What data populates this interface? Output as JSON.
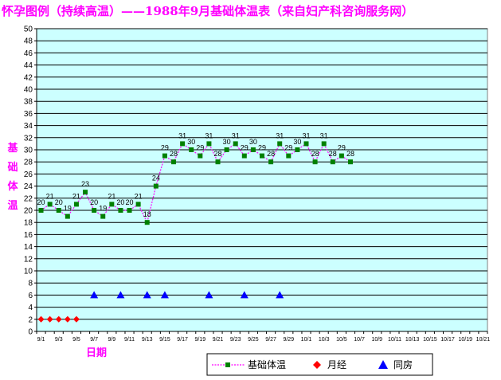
{
  "chart_data": {
    "type": "line",
    "title": "怀孕图例（持续高温）——1988年9月基础体温表（来自妇产科咨询服务网）",
    "ylabel": "基础体温",
    "xlabel": "日期",
    "ylim": [
      0,
      50
    ],
    "y_ticks": [
      0,
      2,
      4,
      6,
      8,
      10,
      12,
      14,
      16,
      18,
      20,
      22,
      24,
      26,
      28,
      30,
      32,
      34,
      36,
      38,
      40,
      42,
      44,
      46,
      48,
      50
    ],
    "x_tick_labels": [
      "9/1",
      "9/3",
      "9/5",
      "9/7",
      "9/9",
      "9/11",
      "9/13",
      "9/15",
      "9/17",
      "9/19",
      "9/21",
      "9/23",
      "9/25",
      "9/27",
      "9/29",
      "10/1",
      "10/3",
      "10/5",
      "10/7",
      "10/9",
      "10/11",
      "10/13",
      "10/15",
      "10/17",
      "10/19",
      "10/21"
    ],
    "x_count": 51,
    "grid": true,
    "legend_position": "bottom",
    "series": [
      {
        "name": "基础体温",
        "color": "#ff00ff",
        "marker_color": "#008000",
        "marker": "square",
        "start_index": 0,
        "values": [
          20,
          21,
          20,
          19,
          21,
          23,
          20,
          19,
          21,
          20,
          20,
          21,
          18,
          24,
          29,
          28,
          31,
          30,
          29,
          31,
          28,
          30,
          31,
          29,
          30,
          29,
          28,
          31,
          29,
          30,
          31,
          28,
          31,
          28,
          29,
          28
        ]
      },
      {
        "name": "月经",
        "color": "#ff0000",
        "marker": "diamond",
        "start_index": 0,
        "values": [
          2,
          2,
          2,
          2,
          2
        ]
      },
      {
        "name": "同房",
        "color": "#0000ff",
        "marker": "triangle",
        "x_indices": [
          6,
          9,
          12,
          14,
          19,
          23,
          27
        ],
        "values": [
          6,
          6,
          6,
          6,
          6,
          6,
          6
        ]
      }
    ]
  }
}
